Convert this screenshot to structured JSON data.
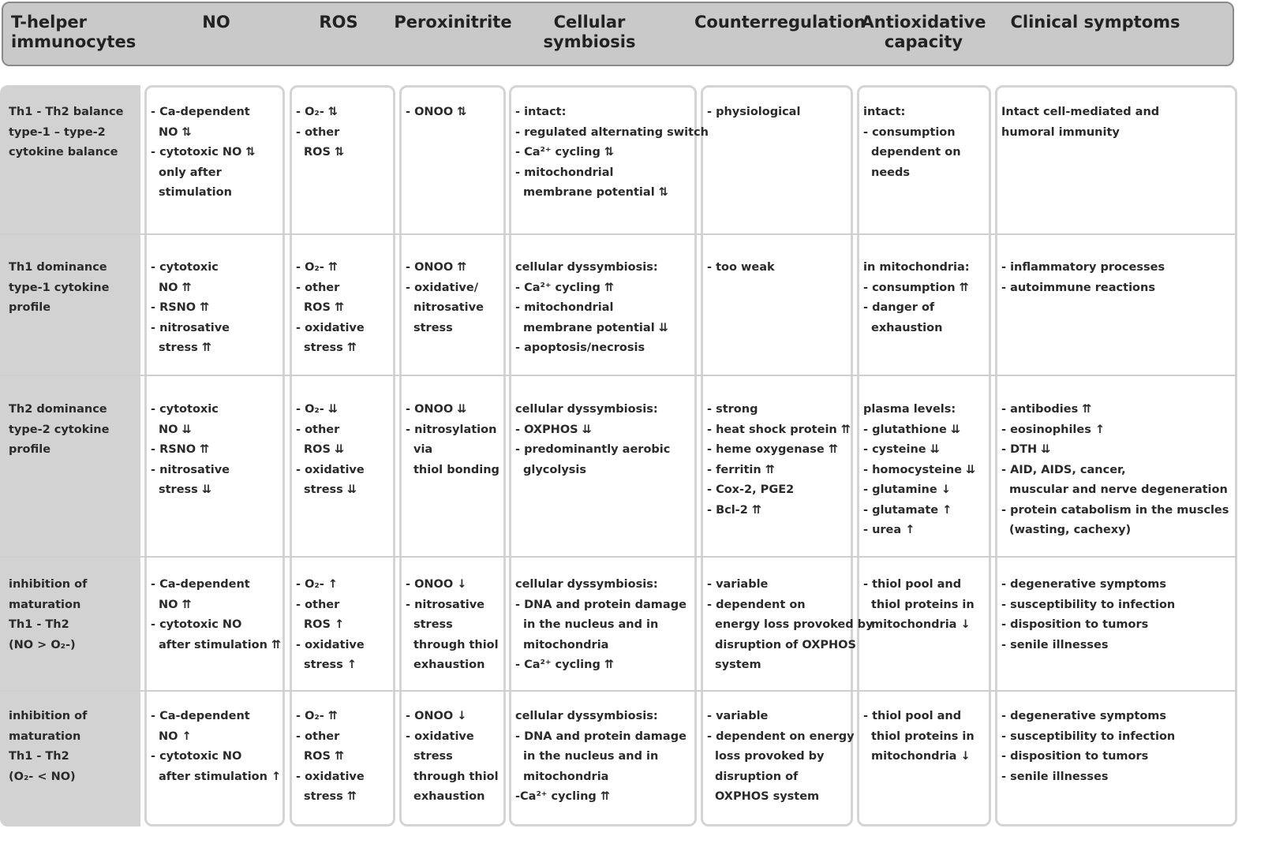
{
  "header": [
    [
      "T-helper",
      "immunocytes"
    ],
    [
      "NO"
    ],
    [
      "ROS"
    ],
    [
      "Peroxinitrite"
    ],
    [
      "Cellular",
      "symbiosis"
    ],
    [
      "Counterregulation"
    ],
    [
      "Antioxidative",
      "capacity"
    ],
    [
      "Clinical symptoms"
    ]
  ],
  "rows": [
    {
      "label": [
        "Th1 - Th2 balance",
        "type-1 – type-2",
        "cytokine balance"
      ],
      "cells": [
        [
          "- Ca-dependent",
          " NO ⇅",
          "- cytotoxic NO ⇅",
          " only after",
          " stimulation"
        ],
        [
          "- O₂- ⇅",
          "- other",
          " ROS ⇅"
        ],
        [
          "- ONOO ⇅"
        ],
        [
          "- intact:",
          "- regulated alternating switch",
          "- Ca²⁺ cycling ⇅",
          "- mitochondrial",
          " membrane potential ⇅"
        ],
        [
          "- physiological"
        ],
        [
          "intact:",
          "- consumption",
          " dependent on",
          " needs"
        ],
        [
          "Intact cell-mediated and",
          "humoral immunity"
        ]
      ]
    },
    {
      "label": [
        "Th1 dominance",
        "type-1 cytokine",
        "profile"
      ],
      "cells": [
        [
          "- cytotoxic",
          " NO ⇈",
          "- RSNO ⇈",
          "- nitrosative",
          " stress ⇈"
        ],
        [
          "- O₂- ⇈",
          "- other",
          " ROS ⇈",
          "- oxidative",
          " stress ⇈"
        ],
        [
          "- ONOO ⇈",
          "- oxidative/",
          " nitrosative",
          " stress"
        ],
        [
          "cellular dyssymbiosis:",
          "- Ca²⁺ cycling ⇈",
          "- mitochondrial",
          " membrane potential ⇊",
          "- apoptosis/necrosis"
        ],
        [
          "- too weak"
        ],
        [
          "in mitochondria:",
          "- consumption ⇈",
          "- danger of",
          " exhaustion"
        ],
        [
          "- inflammatory processes",
          "- autoimmune reactions"
        ]
      ]
    },
    {
      "label": [
        "Th2 dominance",
        "type-2 cytokine",
        "profile"
      ],
      "cells": [
        [
          "- cytotoxic",
          " NO ⇊",
          "- RSNO ⇈",
          "- nitrosative",
          " stress ⇊"
        ],
        [
          "- O₂- ⇊",
          "- other",
          " ROS ⇊",
          "- oxidative",
          " stress ⇊"
        ],
        [
          "- ONOO ⇊",
          "- nitrosylation",
          " via",
          " thiol bonding"
        ],
        [
          "cellular dyssymbiosis:",
          "- OXPHOS ⇊",
          "- predominantly aerobic",
          " glycolysis"
        ],
        [
          "- strong",
          "- heat shock protein ⇈",
          "- heme oxygenase ⇈",
          "- ferritin ⇈",
          "- Cox-2, PGE2",
          "- Bcl-2 ⇈"
        ],
        [
          "plasma levels:",
          "- glutathione ⇊",
          "- cysteine ⇊",
          "- homocysteine ⇊",
          "- glutamine ↓",
          "- glutamate ↑",
          "- urea ↑"
        ],
        [
          "- antibodies ⇈",
          "- eosinophiles ↑",
          "- DTH ⇊",
          "- AID, AIDS, cancer,",
          " muscular and nerve degeneration",
          "- protein catabolism in the muscles",
          "  (wasting, cachexy)"
        ]
      ]
    },
    {
      "label": [
        "inhibition of",
        "maturation",
        "Th1 - Th2",
        "(NO > O₂-)"
      ],
      "cells": [
        [
          "- Ca-dependent",
          " NO ⇈",
          "- cytotoxic NO",
          " after stimulation ⇈"
        ],
        [
          "- O₂- ↑",
          "- other",
          " ROS ↑",
          "- oxidative",
          " stress ↑"
        ],
        [
          "- ONOO ↓",
          "- nitrosative",
          " stress",
          " through thiol",
          " exhaustion"
        ],
        [
          "cellular dyssymbiosis:",
          "- DNA and protein damage",
          " in the nucleus and in",
          " mitochondria",
          "- Ca²⁺ cycling ⇈"
        ],
        [
          "- variable",
          "- dependent on",
          " energy loss provoked by",
          " disruption of OXPHOS",
          " system"
        ],
        [
          "- thiol pool and",
          " thiol proteins in",
          " mitochondria ↓"
        ],
        [
          "- degenerative symptoms",
          "- susceptibility to infection",
          "- disposition to tumors",
          "- senile illnesses"
        ]
      ]
    },
    {
      "label": [
        "inhibition of",
        "maturation",
        "Th1 - Th2",
        "(O₂- < NO)"
      ],
      "cells": [
        [
          "- Ca-dependent",
          " NO ↑",
          "- cytotoxic NO",
          " after stimulation ↑"
        ],
        [
          "- O₂- ⇈",
          "- other",
          " ROS ⇈",
          "- oxidative",
          " stress ⇈"
        ],
        [
          "- ONOO ↓",
          "- oxidative",
          " stress",
          " through thiol",
          " exhaustion"
        ],
        [
          "cellular dyssymbiosis:",
          "- DNA and protein damage",
          " in the nucleus and in",
          " mitochondria",
          "-Ca²⁺ cycling ⇈"
        ],
        [
          "- variable",
          "- dependent on energy",
          " loss provoked by",
          " disruption of",
          " OXPHOS system"
        ],
        [
          "- thiol pool and",
          " thiol proteins in",
          " mitochondria ↓"
        ],
        [
          "- degenerative symptoms",
          "- susceptibility to infection",
          "- disposition to tumors",
          "- senile illnesses"
        ]
      ]
    }
  ]
}
